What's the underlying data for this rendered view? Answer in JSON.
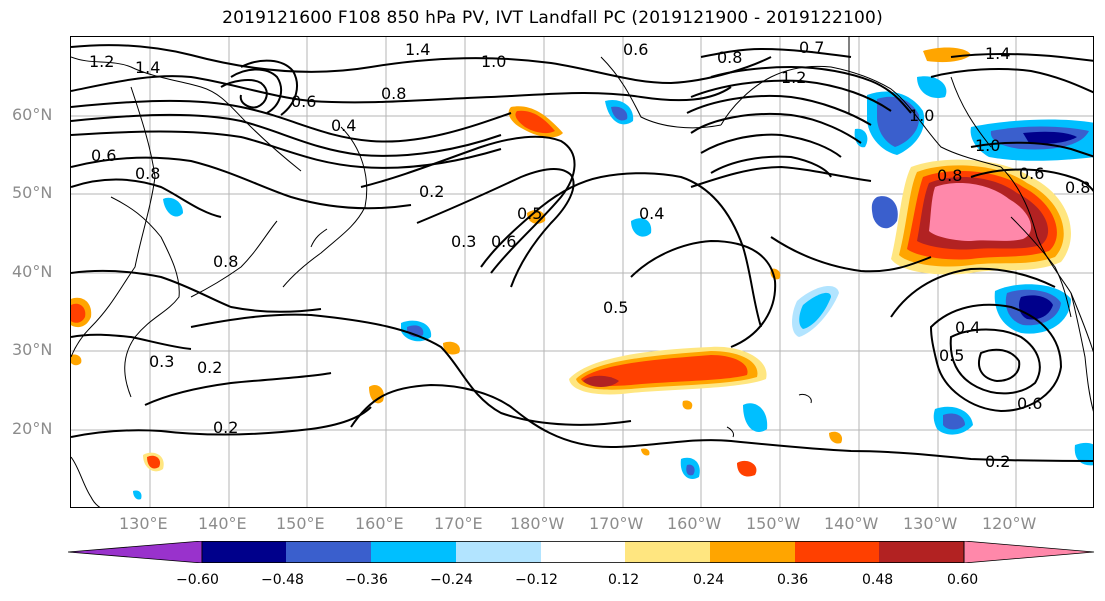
{
  "title": "2019121600 F108 850 hPa PV, IVT Landfall PC (2019121900 - 2019122100)",
  "lat_labels": [
    "60°N",
    "50°N",
    "40°N",
    "30°N",
    "20°N"
  ],
  "lon_labels": [
    "130°E",
    "140°E",
    "150°E",
    "160°E",
    "170°E",
    "180°W",
    "170°W",
    "160°W",
    "150°W",
    "140°W",
    "130°W",
    "120°W"
  ],
  "contour_labels": [
    "1.2",
    "1.4",
    "1.4",
    "1.0",
    "0.6",
    "0.8",
    "0.7",
    "1.2",
    "1.0",
    "0.8",
    "1.4",
    "0.6",
    "0.8",
    "0.4",
    "0.6",
    "0.8",
    "0.2",
    "0.3",
    "0.6",
    "0.5",
    "0.4",
    "0.5",
    "0.8",
    "1.0",
    "0.6",
    "0.8",
    "0.4",
    "0.5",
    "0.6",
    "0.3",
    "0.2",
    "0.2",
    "0.2"
  ],
  "colorbar": {
    "tick_labels": [
      "−0.60",
      "−0.48",
      "−0.36",
      "−0.24",
      "−0.12",
      "0.12",
      "0.24",
      "0.36",
      "0.48",
      "0.60"
    ],
    "colors": [
      "#9932CC",
      "#00008B",
      "#3A5FCD",
      "#00BFFF",
      "#B2E4FF",
      "#FFFFFF",
      "#FFE680",
      "#FFA500",
      "#FF4000",
      "#B22222",
      "#FF88AA"
    ]
  },
  "palette": {
    "pos_light": "#FFE680",
    "pos_mid": "#FFA500",
    "pos_strong": "#FF4000",
    "pos_darker": "#B22222",
    "pos_max": "#FF88AA",
    "neg_light": "#B2E4FF",
    "neg_mid": "#00BFFF",
    "neg_strong": "#3A5FCD",
    "neg_darker": "#00008B",
    "neg_max": "#9932CC"
  }
}
